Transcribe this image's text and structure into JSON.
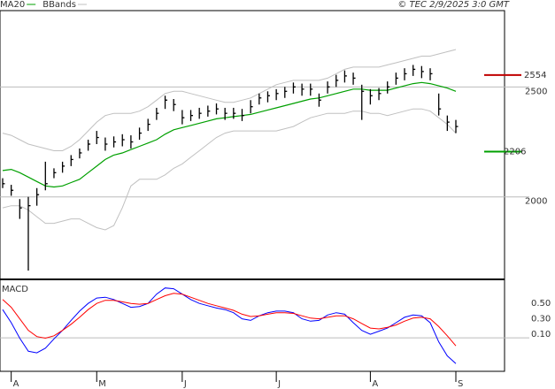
{
  "chart_data": [
    {
      "type": "ohlc",
      "source": "© TEC 2/9/2025 3:0 GMT",
      "categories": [
        null,
        "A",
        null,
        null,
        null,
        null,
        null,
        null,
        null,
        null,
        null,
        "M",
        null,
        null,
        null,
        null,
        null,
        null,
        null,
        null,
        null,
        "J",
        null,
        null,
        null,
        null,
        null,
        null,
        null,
        null,
        null,
        null,
        "J",
        null,
        null,
        null,
        null,
        null,
        null,
        null,
        null,
        null,
        null,
        "A",
        null,
        null,
        null,
        null,
        null,
        null,
        null,
        null,
        null,
        "S"
      ],
      "high": [
        2085,
        2055,
        1990,
        2000,
        2040,
        2160,
        2130,
        2160,
        2190,
        2220,
        2260,
        2300,
        2270,
        2275,
        2285,
        2280,
        2315,
        2355,
        2405,
        2460,
        2445,
        2395,
        2395,
        2405,
        2415,
        2425,
        2405,
        2405,
        2400,
        2440,
        2470,
        2480,
        2490,
        2500,
        2520,
        2515,
        2515,
        2470,
        2525,
        2555,
        2575,
        2565,
        2510,
        2490,
        2495,
        2525,
        2565,
        2585,
        2600,
        2595,
        2585,
        2470,
        2370,
        2350
      ],
      "low": [
        2040,
        2005,
        1900,
        1665,
        1960,
        2030,
        2085,
        2110,
        2140,
        2175,
        2210,
        2240,
        2210,
        2225,
        2230,
        2220,
        2260,
        2300,
        2350,
        2400,
        2390,
        2330,
        2345,
        2355,
        2365,
        2375,
        2350,
        2355,
        2345,
        2380,
        2420,
        2430,
        2440,
        2450,
        2470,
        2460,
        2460,
        2410,
        2470,
        2500,
        2520,
        2510,
        2350,
        2420,
        2440,
        2470,
        2510,
        2530,
        2550,
        2540,
        2530,
        2370,
        2300,
        2290
      ],
      "close": [
        2060,
        2030,
        1950,
        1960,
        2010,
        2060,
        2110,
        2140,
        2170,
        2200,
        2240,
        2270,
        2240,
        2250,
        2260,
        2250,
        2290,
        2330,
        2380,
        2440,
        2420,
        2360,
        2370,
        2380,
        2390,
        2400,
        2380,
        2380,
        2370,
        2410,
        2450,
        2460,
        2470,
        2480,
        2500,
        2490,
        2490,
        2440,
        2500,
        2530,
        2550,
        2540,
        2480,
        2460,
        2470,
        2500,
        2540,
        2560,
        2580,
        2570,
        2560,
        2400,
        2340,
        2320
      ],
      "bar_color": "#000000",
      "series": [
        {
          "name": "MA20",
          "color": "#00a000",
          "values": [
            2120,
            2125,
            2110,
            2090,
            2070,
            2050,
            2045,
            2050,
            2065,
            2080,
            2110,
            2140,
            2170,
            2190,
            2200,
            2215,
            2230,
            2245,
            2260,
            2285,
            2305,
            2315,
            2325,
            2335,
            2345,
            2355,
            2360,
            2365,
            2370,
            2375,
            2385,
            2395,
            2405,
            2415,
            2425,
            2435,
            2445,
            2450,
            2460,
            2470,
            2480,
            2490,
            2490,
            2485,
            2485,
            2485,
            2495,
            2505,
            2515,
            2520,
            2515,
            2505,
            2495,
            2480
          ]
        },
        {
          "name": "BBands",
          "color": "#c0c0c0",
          "upper": [
            2290,
            2280,
            2260,
            2240,
            2230,
            2220,
            2210,
            2210,
            2230,
            2260,
            2300,
            2340,
            2370,
            2380,
            2380,
            2380,
            2390,
            2410,
            2440,
            2470,
            2480,
            2480,
            2470,
            2460,
            2450,
            2440,
            2430,
            2430,
            2440,
            2450,
            2470,
            2490,
            2510,
            2520,
            2530,
            2530,
            2530,
            2530,
            2540,
            2560,
            2580,
            2590,
            2590,
            2590,
            2590,
            2600,
            2610,
            2620,
            2630,
            2640,
            2640,
            2650,
            2660,
            2670
          ],
          "lower": [
            1950,
            1960,
            1960,
            1940,
            1910,
            1880,
            1880,
            1890,
            1900,
            1900,
            1880,
            1860,
            1850,
            1870,
            1950,
            2050,
            2080,
            2080,
            2080,
            2100,
            2130,
            2150,
            2180,
            2210,
            2240,
            2270,
            2290,
            2300,
            2300,
            2300,
            2300,
            2300,
            2300,
            2310,
            2320,
            2340,
            2360,
            2370,
            2380,
            2380,
            2380,
            2390,
            2390,
            2380,
            2380,
            2370,
            2380,
            2390,
            2400,
            2400,
            2390,
            2360,
            2330,
            2290
          ]
        }
      ],
      "levels": [
        {
          "value": 2554,
          "color": "#c00000"
        },
        {
          "value": 2206,
          "color": "#00a000"
        }
      ],
      "ylim": [
        1625,
        2847
      ],
      "yticks": [
        2000,
        2500
      ],
      "grid": true
    },
    {
      "type": "line",
      "title": "MACD",
      "series": [
        {
          "color": "#0000ff",
          "values": [
            0.42,
            0.25,
            0.05,
            -0.12,
            -0.14,
            -0.08,
            0.04,
            0.15,
            0.28,
            0.4,
            0.5,
            0.57,
            0.58,
            0.55,
            0.5,
            0.45,
            0.46,
            0.5,
            0.62,
            0.7,
            0.69,
            0.62,
            0.55,
            0.5,
            0.47,
            0.44,
            0.42,
            0.38,
            0.3,
            0.28,
            0.34,
            0.38,
            0.4,
            0.4,
            0.38,
            0.3,
            0.27,
            0.28,
            0.35,
            0.38,
            0.36,
            0.25,
            0.15,
            0.1,
            0.14,
            0.18,
            0.25,
            0.32,
            0.35,
            0.34,
            0.25,
            0.0,
            -0.18,
            -0.28
          ]
        },
        {
          "color": "#ff0000",
          "values": [
            0.55,
            0.45,
            0.3,
            0.15,
            0.07,
            0.05,
            0.08,
            0.15,
            0.23,
            0.32,
            0.42,
            0.5,
            0.54,
            0.54,
            0.52,
            0.5,
            0.49,
            0.5,
            0.55,
            0.6,
            0.63,
            0.62,
            0.58,
            0.54,
            0.5,
            0.47,
            0.44,
            0.41,
            0.36,
            0.33,
            0.34,
            0.36,
            0.38,
            0.38,
            0.37,
            0.34,
            0.31,
            0.3,
            0.32,
            0.34,
            0.34,
            0.3,
            0.24,
            0.18,
            0.17,
            0.19,
            0.22,
            0.27,
            0.31,
            0.32,
            0.3,
            0.2,
            0.08,
            -0.05
          ]
        }
      ],
      "ylim": [
        -0.38,
        0.8
      ],
      "yticks": [
        {
          "value": 0.5,
          "label": "0.50"
        },
        {
          "value": 0.3,
          "label": "0.30"
        },
        {
          "value": 0.1,
          "label": "0.10"
        }
      ],
      "grid": true
    }
  ]
}
